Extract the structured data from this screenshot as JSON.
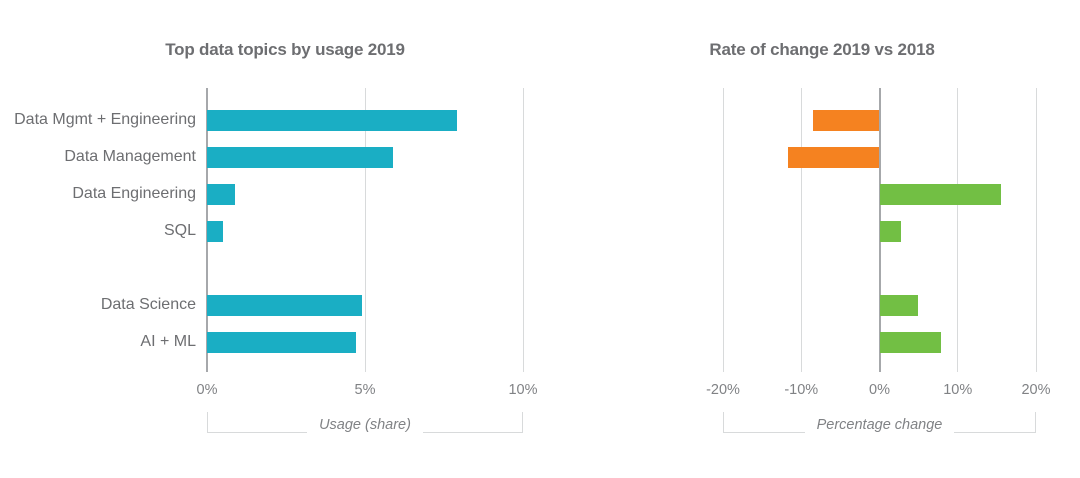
{
  "figure": {
    "background": "#ffffff"
  },
  "colors": {
    "title_text": "#6D6E71",
    "category_text": "#6D6E71",
    "tick_text": "#808285",
    "gridline": "#D8DADB",
    "axis_line": "#A6A8AB",
    "bracket_line": "#D8DADB"
  },
  "chart_data": [
    {
      "type": "bar",
      "orientation": "horizontal",
      "title": "Top data topics by usage 2019",
      "xlabel": "Usage (share)",
      "unit": "%",
      "categories": [
        "Data Mgmt + Engineering",
        "Data Management",
        "Data Engineering",
        "SQL",
        "",
        "Data Science",
        "AI + ML"
      ],
      "values": [
        7.9,
        5.9,
        0.9,
        0.5,
        null,
        4.9,
        4.7
      ],
      "xlim": [
        0,
        10
      ],
      "ticks": [
        {
          "value": 0,
          "label": "0%"
        },
        {
          "value": 5,
          "label": "5%"
        },
        {
          "value": 10,
          "label": "10%"
        }
      ],
      "show_category_labels": true,
      "grid": true,
      "legend": null,
      "colors": {
        "bar": "#1AAEC4"
      }
    },
    {
      "type": "bar",
      "orientation": "horizontal",
      "title": "Rate of change 2019 vs 2018",
      "xlabel": "Percentage change",
      "unit": "%",
      "categories": [
        "Data Mgmt + Engineering",
        "Data Management",
        "Data Engineering",
        "SQL",
        "",
        "Data Science",
        "AI + ML"
      ],
      "values": [
        -8.5,
        -11.7,
        15.5,
        2.8,
        null,
        4.9,
        7.8
      ],
      "xlim": [
        -20,
        20
      ],
      "ticks": [
        {
          "value": -20,
          "label": "-20%"
        },
        {
          "value": -10,
          "label": "-10%"
        },
        {
          "value": 0,
          "label": "0%"
        },
        {
          "value": 10,
          "label": "10%"
        },
        {
          "value": 20,
          "label": "20%"
        }
      ],
      "show_category_labels": false,
      "grid": true,
      "legend": null,
      "colors": {
        "positive": "#72BF44",
        "negative": "#F58220"
      }
    }
  ]
}
